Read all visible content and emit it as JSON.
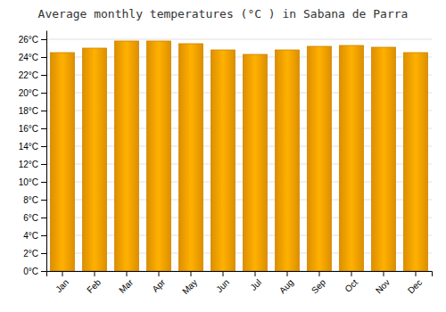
{
  "chart_data": {
    "type": "bar",
    "title": "Average monthly temperatures (°C ) in Sabana de Parra",
    "categories": [
      "Jan",
      "Feb",
      "Mar",
      "Apr",
      "May",
      "Jun",
      "Jul",
      "Aug",
      "Sep",
      "Oct",
      "Nov",
      "Dec"
    ],
    "values": [
      24.5,
      25.0,
      25.8,
      25.8,
      25.5,
      24.8,
      24.3,
      24.8,
      25.2,
      25.3,
      25.1,
      24.5
    ],
    "color": "#FFA500",
    "ylim": [
      0,
      27
    ],
    "yticks": [
      {
        "value": 0,
        "label": "0°C"
      },
      {
        "value": 2,
        "label": "2°C"
      },
      {
        "value": 4,
        "label": "4°C"
      },
      {
        "value": 6,
        "label": "6°C"
      },
      {
        "value": 8,
        "label": "8°C"
      },
      {
        "value": 10,
        "label": "10°C"
      },
      {
        "value": 12,
        "label": "12°C"
      },
      {
        "value": 14,
        "label": "14°C"
      },
      {
        "value": 16,
        "label": "16°C"
      },
      {
        "value": 18,
        "label": "18°C"
      },
      {
        "value": 20,
        "label": "20°C"
      },
      {
        "value": 22,
        "label": "22°C"
      },
      {
        "value": 24,
        "label": "24°C"
      },
      {
        "value": 26,
        "label": "26°C"
      }
    ],
    "grid": true
  }
}
